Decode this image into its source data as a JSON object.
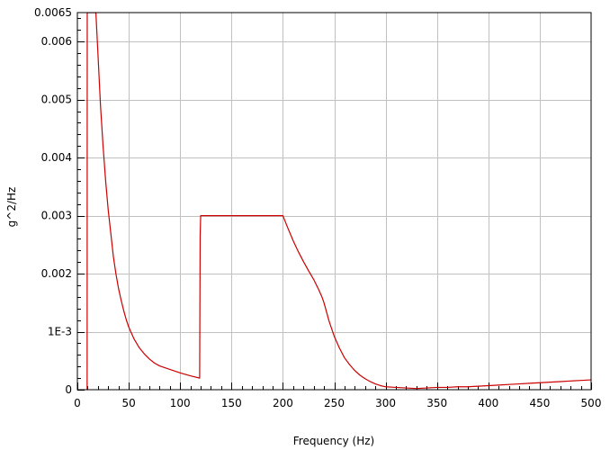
{
  "chart_data": {
    "type": "line",
    "title": "",
    "xlabel": "Frequency (Hz)",
    "ylabel": "g^2/Hz",
    "xlim": [
      0,
      500
    ],
    "ylim": [
      0,
      0.0065
    ],
    "grid": true,
    "legend": "none",
    "x_ticks": [
      {
        "value": 0,
        "label": "0"
      },
      {
        "value": 50,
        "label": "50"
      },
      {
        "value": 100,
        "label": "100"
      },
      {
        "value": 150,
        "label": "150"
      },
      {
        "value": 200,
        "label": "200"
      },
      {
        "value": 250,
        "label": "250"
      },
      {
        "value": 300,
        "label": "300"
      },
      {
        "value": 350,
        "label": "350"
      },
      {
        "value": 400,
        "label": "400"
      },
      {
        "value": 450,
        "label": "450"
      },
      {
        "value": 500,
        "label": "500"
      }
    ],
    "y_ticks": [
      {
        "value": 0,
        "label": "0"
      },
      {
        "value": 0.001,
        "label": "1E-3"
      },
      {
        "value": 0.002,
        "label": "0.002"
      },
      {
        "value": 0.003,
        "label": "0.003"
      },
      {
        "value": 0.004,
        "label": "0.004"
      },
      {
        "value": 0.005,
        "label": "0.005"
      },
      {
        "value": 0.006,
        "label": "0.006"
      },
      {
        "value": 0.0065,
        "label": "0.0065"
      }
    ],
    "series": [
      {
        "color": "#cc0000",
        "x": [
          9.5,
          9.6,
          9.7,
          18,
          20,
          22.5,
          25,
          27.5,
          30,
          32.5,
          35,
          37.5,
          40,
          42.5,
          45,
          47.5,
          50,
          55,
          60,
          65,
          70,
          75,
          80,
          90,
          100,
          110,
          119,
          119.5,
          120,
          121,
          200,
          205,
          210,
          215,
          220,
          225,
          230,
          235,
          238,
          240,
          245,
          250,
          255,
          260,
          265,
          270,
          275,
          280,
          285,
          290,
          295,
          300,
          310,
          320,
          330,
          340,
          350,
          360,
          370,
          380,
          390,
          400,
          410,
          420,
          430,
          440,
          450,
          460,
          470,
          480,
          490,
          500
        ],
        "values": [
          0.0,
          0.0065,
          0.0065,
          0.0065,
          0.0058,
          0.0049,
          0.0042,
          0.0036,
          0.0031,
          0.0027,
          0.0023,
          0.002,
          0.00175,
          0.00155,
          0.00137,
          0.00121,
          0.00108,
          0.00088,
          0.00073,
          0.00062,
          0.00053,
          0.00046,
          0.00041,
          0.00035,
          0.00029,
          0.00024,
          0.0002,
          0.00265,
          0.003,
          0.003,
          0.003,
          0.00278,
          0.00257,
          0.00238,
          0.00221,
          0.00205,
          0.0019,
          0.00172,
          0.0016,
          0.0015,
          0.00118,
          0.00092,
          0.00072,
          0.00055,
          0.00043,
          0.00033,
          0.00025,
          0.00019,
          0.00014,
          0.0001,
          7e-05,
          5e-05,
          4e-05,
          3e-05,
          2e-05,
          3e-05,
          4e-05,
          4e-05,
          5e-05,
          5e-05,
          6e-05,
          7e-05,
          8e-05,
          9e-05,
          0.0001,
          0.00011,
          0.00012,
          0.00013,
          0.00014,
          0.00015,
          0.00016,
          0.00017
        ]
      }
    ]
  }
}
